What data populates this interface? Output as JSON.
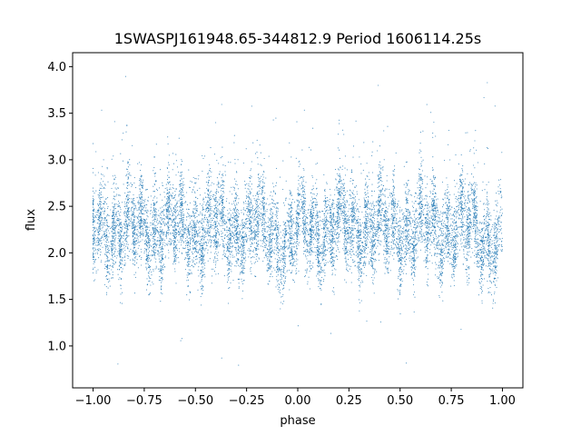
{
  "chart_data": {
    "type": "scatter",
    "title": "1SWASPJ161948.65-344812.9 Period 1606114.25s",
    "xlabel": "phase",
    "ylabel": "flux",
    "xlim": [
      -1.1,
      1.1
    ],
    "ylim": [
      0.55,
      4.15
    ],
    "xticks": [
      -1.0,
      -0.75,
      -0.5,
      -0.25,
      0.0,
      0.25,
      0.5,
      0.75,
      1.0
    ],
    "xtick_labels": [
      "−1.00",
      "−0.75",
      "−0.50",
      "−0.25",
      "0.00",
      "0.25",
      "0.50",
      "0.75",
      "1.00"
    ],
    "yticks": [
      1.0,
      1.5,
      2.0,
      2.5,
      3.0,
      3.5,
      4.0
    ],
    "ytick_labels": [
      "1.0",
      "1.5",
      "2.0",
      "2.5",
      "3.0",
      "3.5",
      "4.0"
    ],
    "grid": false,
    "marker_color": "#1f77b4",
    "series": [
      {
        "x_range": [
          -1.0,
          1.0
        ],
        "y_baseline": 2.25,
        "y_typical_range": [
          1.6,
          2.9
        ],
        "y_outlier_range": [
          0.7,
          4.0
        ]
      }
    ]
  }
}
